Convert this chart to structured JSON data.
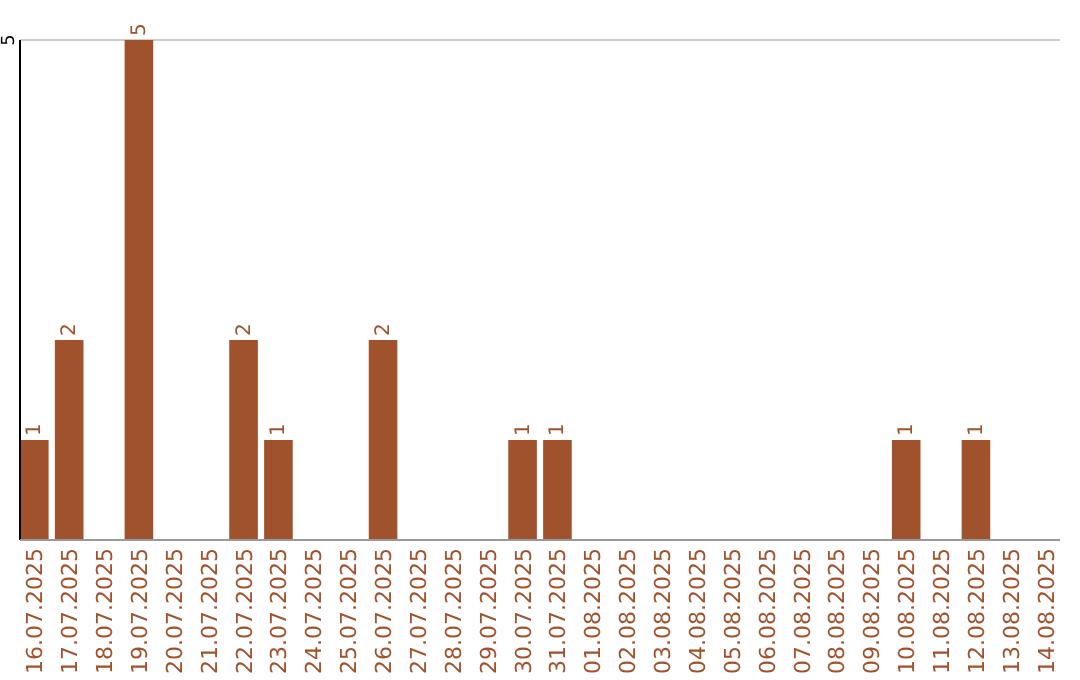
{
  "chart_data": {
    "type": "bar",
    "categories": [
      "16.07.2025",
      "17.07.2025",
      "18.07.2025",
      "19.07.2025",
      "20.07.2025",
      "21.07.2025",
      "22.07.2025",
      "23.07.2025",
      "24.07.2025",
      "25.07.2025",
      "26.07.2025",
      "27.07.2025",
      "28.07.2025",
      "29.07.2025",
      "30.07.2025",
      "31.07.2025",
      "01.08.2025",
      "02.08.2025",
      "03.08.2025",
      "04.08.2025",
      "05.08.2025",
      "06.08.2025",
      "07.08.2025",
      "08.08.2025",
      "09.08.2025",
      "10.08.2025",
      "11.08.2025",
      "12.08.2025",
      "13.08.2025",
      "14.08.2025"
    ],
    "values": [
      1,
      2,
      0,
      5,
      0,
      0,
      2,
      1,
      0,
      0,
      2,
      0,
      0,
      0,
      1,
      1,
      0,
      0,
      0,
      0,
      0,
      0,
      0,
      0,
      0,
      1,
      0,
      1,
      0,
      0
    ],
    "value_labels": [
      "1",
      "2",
      null,
      "5",
      null,
      null,
      "2",
      "1",
      null,
      null,
      "2",
      null,
      null,
      null,
      "1",
      "1",
      null,
      null,
      null,
      null,
      null,
      null,
      null,
      null,
      null,
      "1",
      null,
      "1",
      null,
      null
    ],
    "color": "#a0522d",
    "ylim": [
      0,
      5
    ],
    "yticks": [
      5
    ]
  }
}
